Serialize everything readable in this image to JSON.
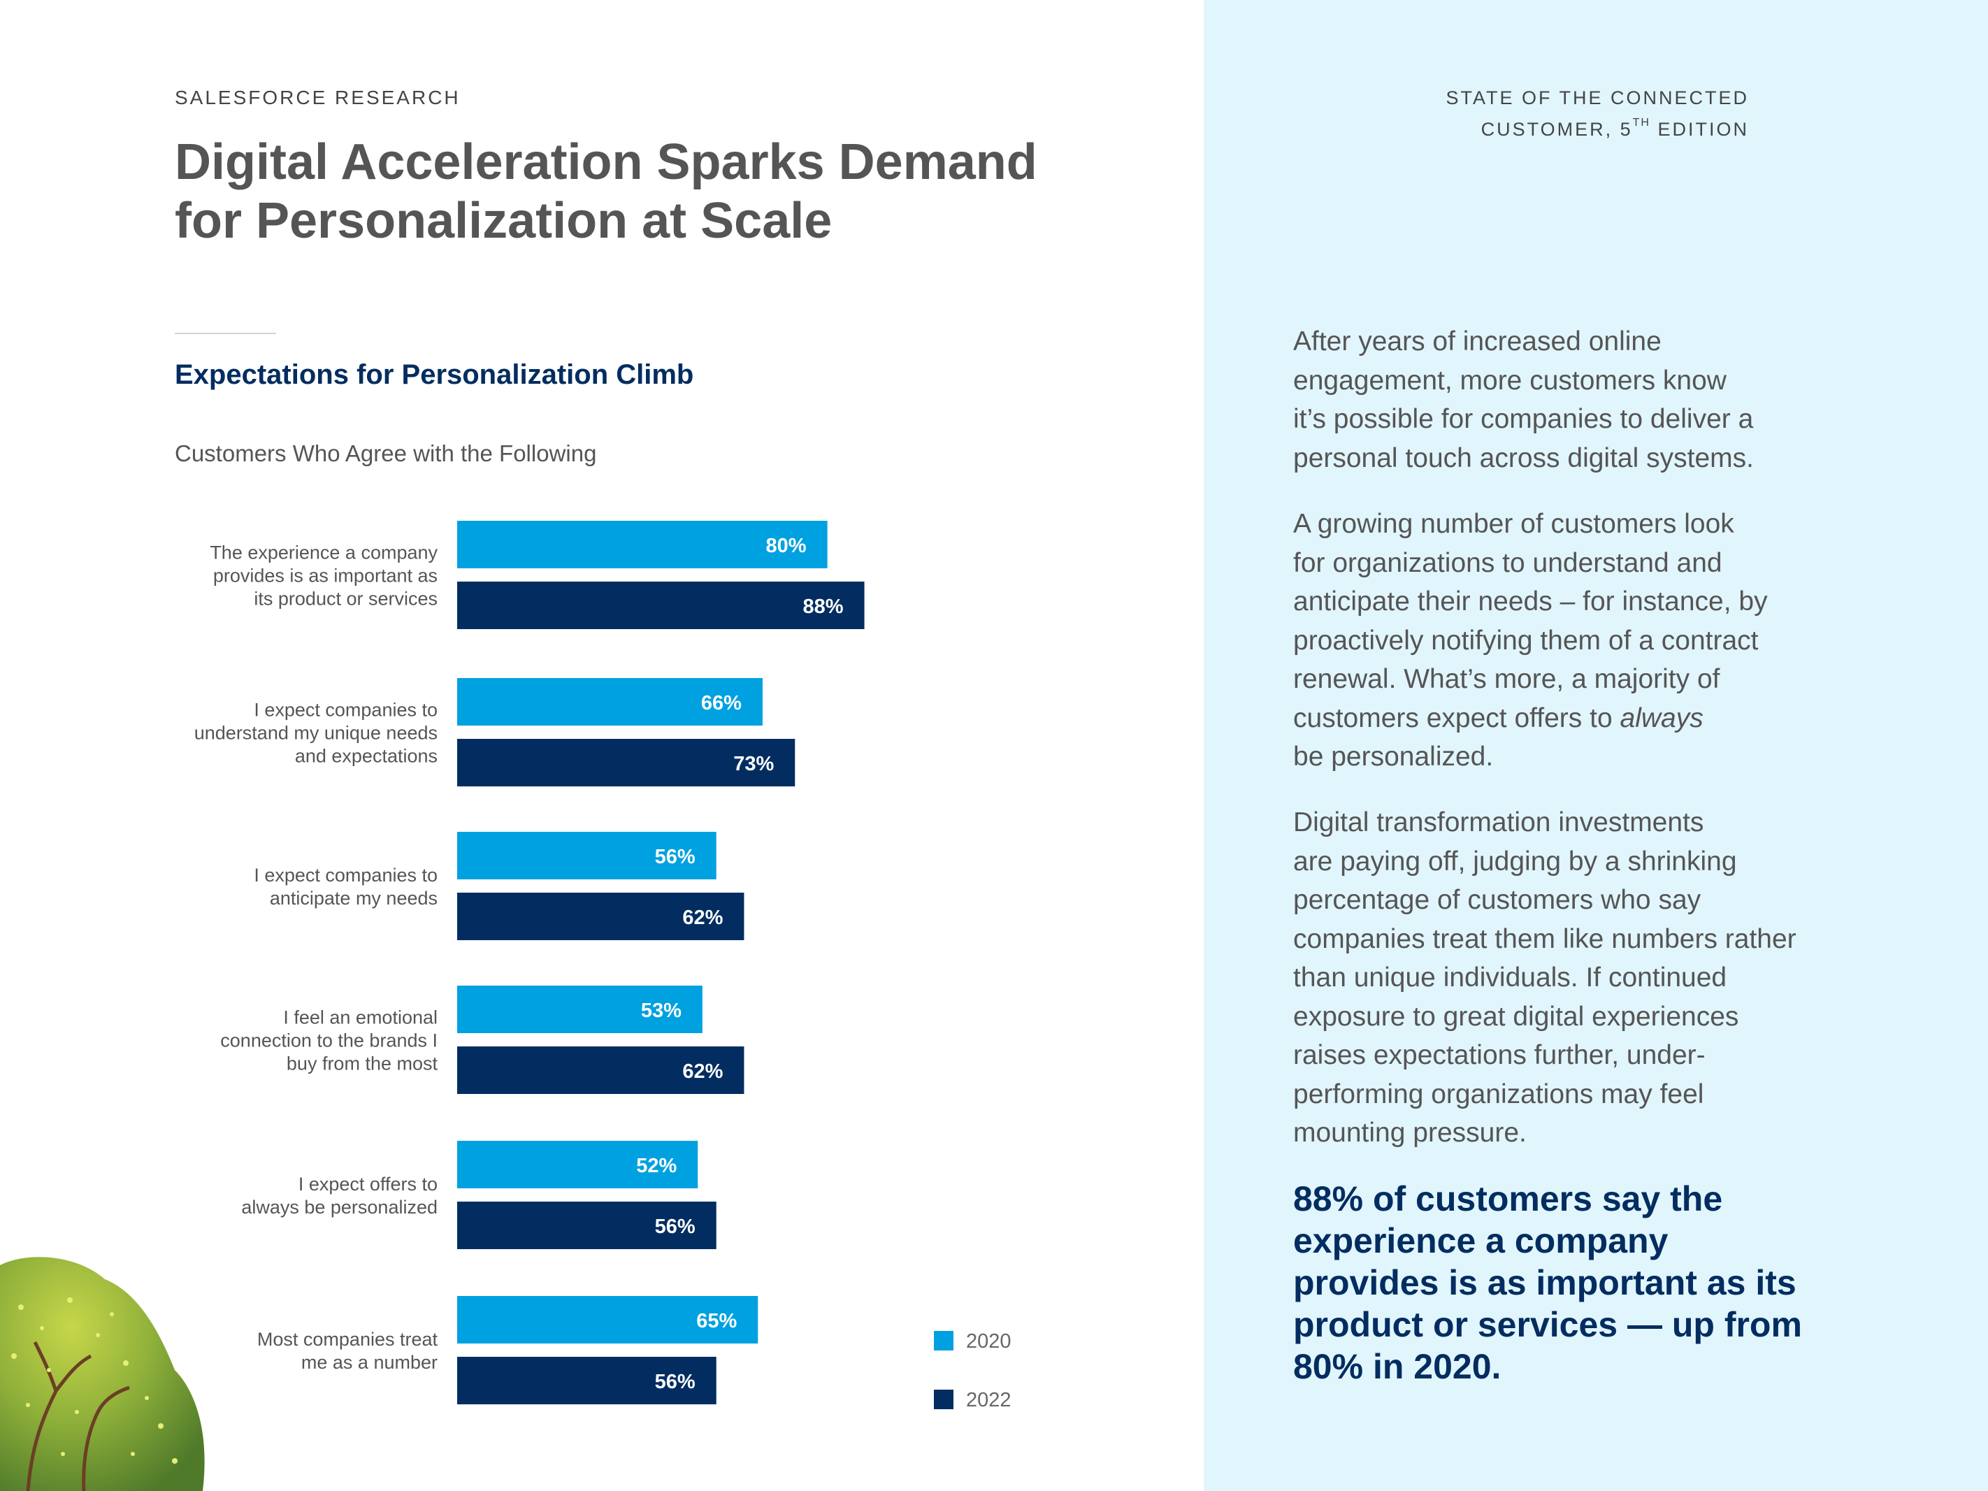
{
  "header": {
    "eyebrow": "SALESFORCE RESEARCH",
    "report_name_line1": "STATE OF THE CONNECTED",
    "report_name_line2_prefix": "CUSTOMER, 5",
    "report_name_sup": "TH",
    "report_name_line2_suffix": " EDITION"
  },
  "page_title_lines": [
    "Digital Acceleration Sparks Demand",
    "for Personalization at Scale"
  ],
  "colors": {
    "series_2020": "#00a1e0",
    "series_2022": "#032d60",
    "panel_bg": "#e1f5fd",
    "title_navy": "#032d60"
  },
  "chart_data": {
    "type": "bar",
    "orientation": "horizontal",
    "title": "Expectations for Personalization Climb",
    "subtitle": "Customers Who Agree with the Following",
    "categories": [
      [
        "The experience a company",
        "provides is as important as",
        "its product or services"
      ],
      [
        "I expect companies to",
        "understand my unique needs",
        "and expectations"
      ],
      [
        "I expect companies to",
        "anticipate my needs"
      ],
      [
        "I feel an emotional",
        "connection to the brands I",
        "buy from the most"
      ],
      [
        "I expect offers to",
        "always be personalized"
      ],
      [
        "Most companies treat",
        "me as a number"
      ]
    ],
    "series": [
      {
        "name": "2020",
        "values": [
          80,
          66,
          56,
          53,
          52,
          65
        ]
      },
      {
        "name": "2022",
        "values": [
          88,
          73,
          62,
          62,
          56,
          56
        ]
      }
    ],
    "value_suffix": "%",
    "xlim": [
      0,
      100
    ],
    "legend": {
      "position": "bottom-right",
      "entries": [
        "2020",
        "2022"
      ]
    },
    "grid": false
  },
  "right_panel": {
    "paragraph1_lines": [
      "After years of increased online",
      "engagement, more customers know",
      "it’s possible for companies  to deliver a",
      "personal touch across digital systems."
    ],
    "paragraph2_lines": [
      "A growing number of customers look",
      "for organizations to understand and",
      "anticipate their needs – for instance, by",
      "proactively notifying them of a contract",
      "renewal.  What’s more, a majority of"
    ],
    "paragraph2_line6_prefix": "customers expect offers to ",
    "paragraph2_line6_emphasis": "always",
    "paragraph2_line7": "be personalized.",
    "paragraph3_lines": [
      "Digital transformation investments",
      "are paying off, judging by a shrinking",
      "percentage of customers who say",
      "companies treat them like numbers rather",
      "than unique individuals. If continued",
      "exposure to great digital experiences",
      "raises expectations further, under-",
      "performing organizations may feel",
      "mounting pressure."
    ],
    "callout_lines": [
      "88% of customers say the",
      "experience a company",
      "provides is as important as its",
      "product or services — up from",
      "80% in 2020."
    ]
  }
}
